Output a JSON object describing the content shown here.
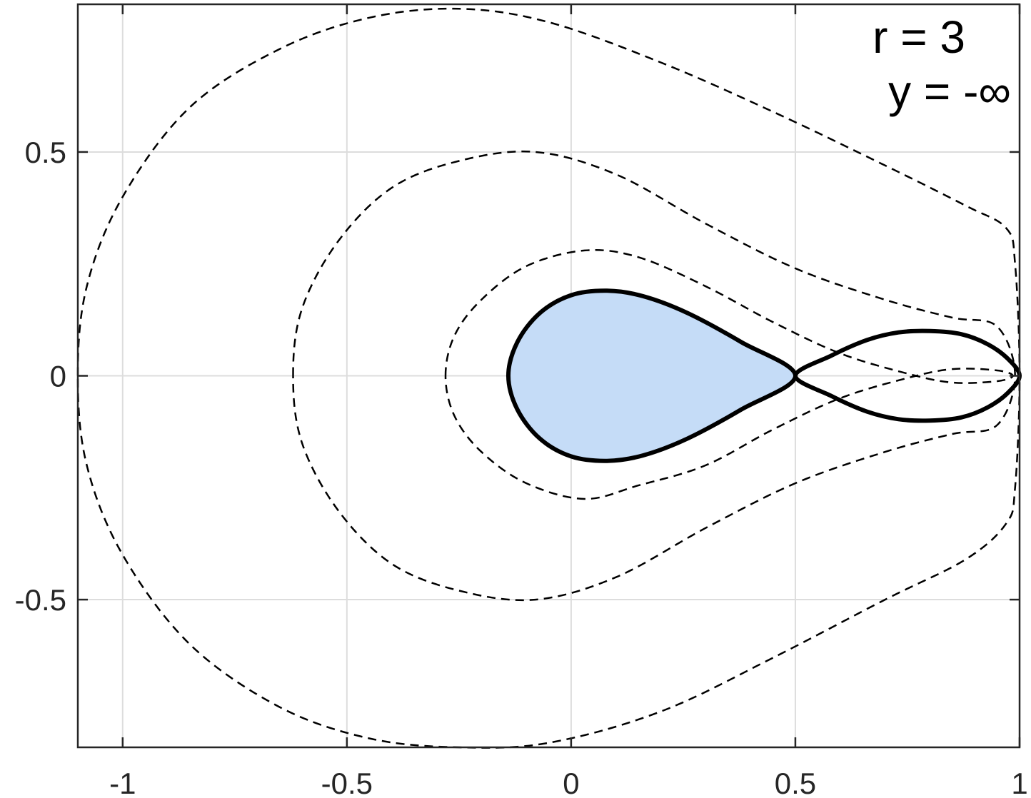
{
  "chart_data": {
    "type": "line",
    "title": "",
    "xlabel": "",
    "ylabel": "",
    "xlim": [
      -1.1,
      1.0
    ],
    "ylim": [
      -0.83,
      0.83
    ],
    "grid": true,
    "x_ticks": [
      -1,
      -0.5,
      0,
      0.5,
      1
    ],
    "x_tick_labels": [
      "-1",
      "-0.5",
      "0",
      "0.5",
      "1"
    ],
    "y_ticks": [
      -0.5,
      0,
      0.5
    ],
    "y_tick_labels": [
      "-0.5",
      "0",
      "0.5"
    ],
    "annotations": [
      "r = 3",
      "y = -∞"
    ],
    "fill_color": "#c5dcf7",
    "series": [
      {
        "style": "solid",
        "closed": true,
        "filled": true,
        "x": [
          0.5,
          0.38,
          0.26,
          0.16,
          0.08,
          0.0,
          -0.07,
          -0.12,
          -0.14,
          -0.12,
          -0.07,
          0.0,
          0.08,
          0.16,
          0.26,
          0.38,
          0.5
        ],
        "y": [
          0.0,
          0.075,
          0.14,
          0.178,
          0.19,
          0.18,
          0.14,
          0.075,
          0.0,
          -0.075,
          -0.14,
          -0.18,
          -0.19,
          -0.178,
          -0.14,
          -0.075,
          0.0
        ]
      },
      {
        "style": "solid",
        "closed": true,
        "filled": false,
        "x": [
          0.5,
          0.58,
          0.66,
          0.73,
          0.8,
          0.87,
          0.93,
          0.975,
          1.0,
          0.975,
          0.93,
          0.87,
          0.8,
          0.73,
          0.66,
          0.58,
          0.5
        ],
        "y": [
          0.0,
          0.045,
          0.08,
          0.097,
          0.1,
          0.093,
          0.07,
          0.037,
          0.0,
          -0.037,
          -0.07,
          -0.093,
          -0.1,
          -0.097,
          -0.08,
          -0.045,
          0.0
        ]
      },
      {
        "style": "dashed",
        "closed": true,
        "filled": false,
        "x": [
          -0.28,
          -0.26,
          -0.2,
          -0.1,
          0.03,
          0.15,
          0.3,
          0.45,
          0.6,
          0.75,
          0.85,
          0.95,
          0.985,
          0.95,
          0.85,
          0.75,
          0.6,
          0.45,
          0.3,
          0.15,
          0.03,
          -0.1,
          -0.2,
          -0.26,
          -0.28
        ],
        "y": [
          0.0,
          0.09,
          0.17,
          0.245,
          0.28,
          0.265,
          0.2,
          0.12,
          0.05,
          0.005,
          -0.015,
          -0.012,
          0.0,
          0.012,
          0.015,
          -0.005,
          -0.05,
          -0.12,
          -0.2,
          -0.245,
          -0.275,
          -0.24,
          -0.17,
          -0.09,
          0.0
        ]
      },
      {
        "style": "dashed",
        "closed": true,
        "filled": false,
        "x": [
          -0.62,
          -0.6,
          -0.52,
          -0.4,
          -0.25,
          -0.08,
          0.1,
          0.3,
          0.5,
          0.7,
          0.85,
          0.95,
          0.99,
          0.95,
          0.85,
          0.7,
          0.5,
          0.3,
          0.1,
          -0.08,
          -0.25,
          -0.4,
          -0.52,
          -0.6,
          -0.62
        ],
        "y": [
          0.0,
          0.15,
          0.3,
          0.42,
          0.48,
          0.5,
          0.45,
          0.34,
          0.24,
          0.17,
          0.13,
          0.11,
          0.0,
          -0.11,
          -0.13,
          -0.17,
          -0.24,
          -0.34,
          -0.45,
          -0.5,
          -0.48,
          -0.42,
          -0.3,
          -0.15,
          0.0
        ]
      },
      {
        "style": "dashed",
        "closed": true,
        "filled": false,
        "x": [
          -1.1,
          -1.08,
          -1.0,
          -0.85,
          -0.65,
          -0.45,
          -0.25,
          -0.05,
          0.2,
          0.45,
          0.7,
          0.88,
          0.97,
          0.99,
          1.0,
          0.99,
          0.97,
          0.88,
          0.7,
          0.45,
          0.2,
          -0.05,
          -0.25,
          -0.45,
          -0.65,
          -0.85,
          -1.0,
          -1.08,
          -1.1
        ],
        "y": [
          0.0,
          0.2,
          0.4,
          0.6,
          0.73,
          0.8,
          0.82,
          0.79,
          0.7,
          0.59,
          0.47,
          0.38,
          0.33,
          0.25,
          0.0,
          -0.25,
          -0.33,
          -0.41,
          -0.5,
          -0.63,
          -0.75,
          -0.82,
          -0.83,
          -0.81,
          -0.74,
          -0.6,
          -0.4,
          -0.2,
          0.0
        ]
      }
    ]
  }
}
